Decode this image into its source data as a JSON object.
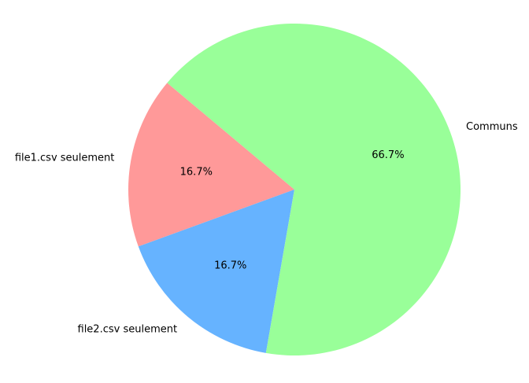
{
  "chart_data": {
    "type": "pie",
    "title": "",
    "slices": [
      {
        "label": "file1.csv seulement",
        "value": 16.7,
        "pct_label": "16.7%",
        "color": "#ff9999"
      },
      {
        "label": "file2.csv seulement",
        "value": 16.7,
        "pct_label": "16.7%",
        "color": "#66b3ff"
      },
      {
        "label": "Communs",
        "value": 66.7,
        "pct_label": "66.7%",
        "color": "#99ff99"
      }
    ],
    "start_angle_deg": 140,
    "direction": "counterclockwise",
    "legend": "none"
  }
}
